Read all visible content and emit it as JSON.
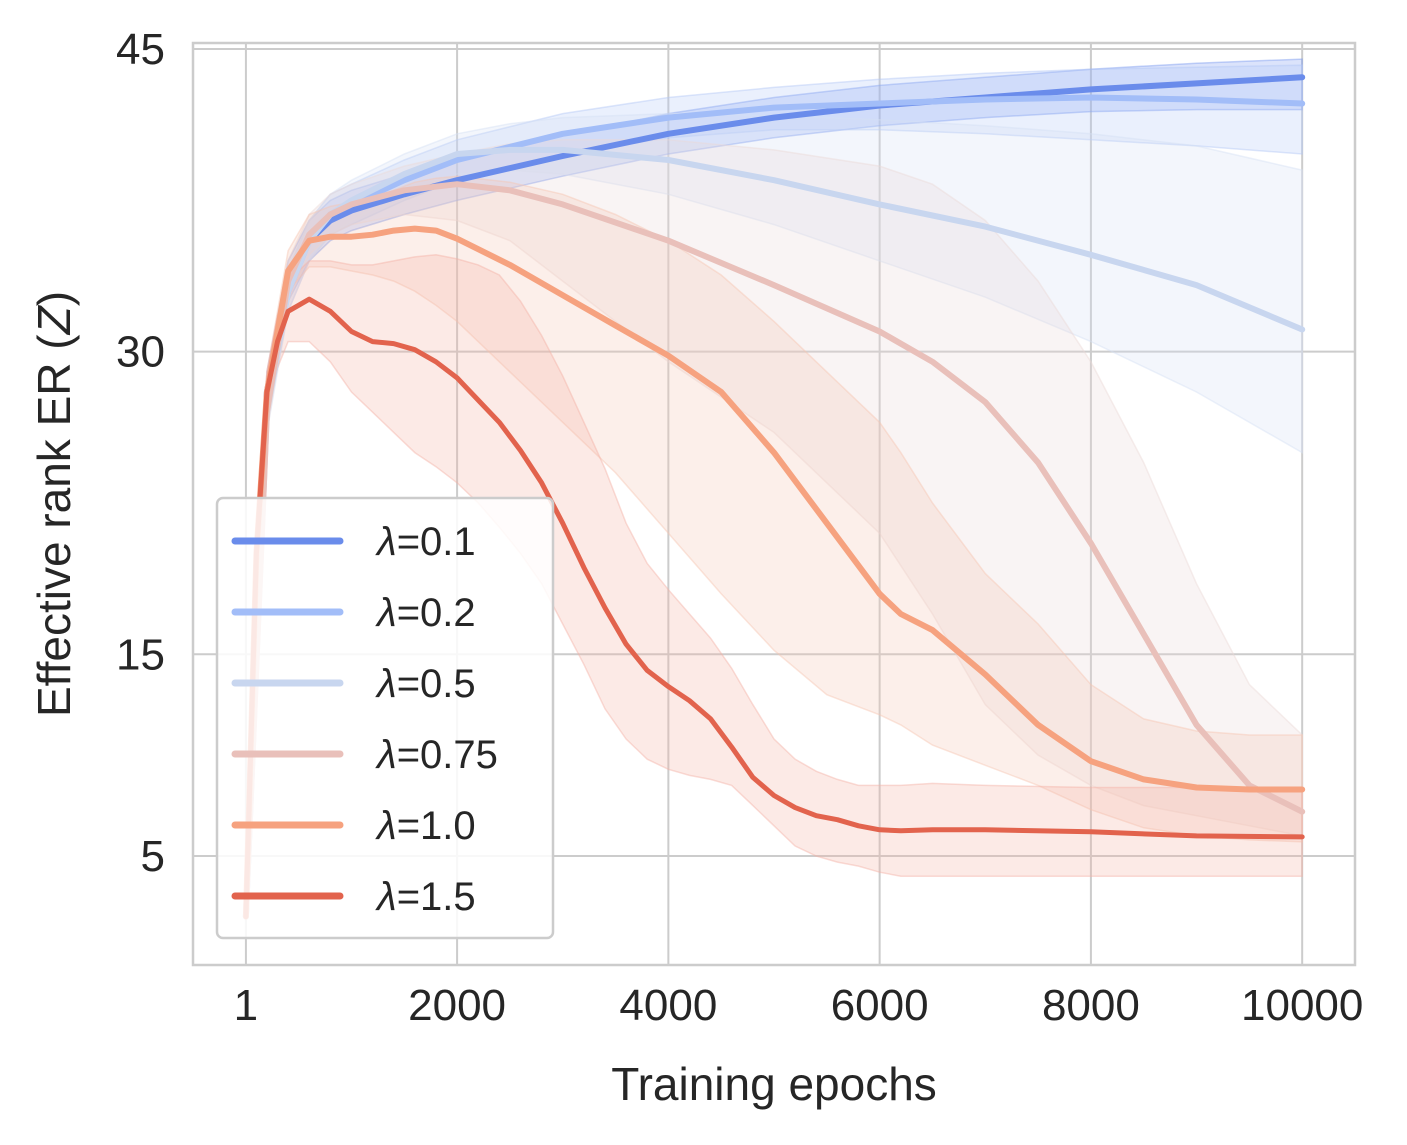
{
  "chart_data": {
    "type": "line",
    "title": "",
    "xlabel": "Training epochs",
    "ylabel_prefix": "Effective rank  ER (",
    "ylabel_var": "Z",
    "ylabel_suffix": ")",
    "xlim": [
      -500,
      10500
    ],
    "ylim": [
      -0.4,
      45.3
    ],
    "x_ticks": [
      1,
      2000,
      4000,
      6000,
      8000,
      10000
    ],
    "x_tick_labels": [
      "1",
      "2000",
      "4000",
      "6000",
      "8000",
      "10000"
    ],
    "y_ticks": [
      5,
      15,
      30,
      45
    ],
    "y_tick_labels": [
      "5",
      "15",
      "30",
      "45"
    ],
    "grid": true,
    "legend_position": "lower-left",
    "legend_symbol": "λ",
    "series": [
      {
        "name": "λ=0.1",
        "legend_label": "=0.1",
        "color": "#6a8ceb",
        "band_color": "#7d9bef",
        "line_width": 6,
        "x": [
          1,
          200,
          400,
          600,
          800,
          1000,
          1500,
          2000,
          3000,
          4000,
          5000,
          6000,
          7000,
          8000,
          9000,
          10000
        ],
        "y": [
          2,
          28,
          33.5,
          35.5,
          36.5,
          37,
          37.8,
          38.5,
          39.7,
          40.8,
          41.6,
          42.2,
          42.6,
          43.0,
          43.3,
          43.6
        ],
        "lower": [
          2,
          27,
          32.5,
          34.5,
          35.5,
          36,
          36.8,
          37.5,
          38.7,
          39.8,
          40.6,
          41.2,
          41.6,
          41.9,
          42.0,
          42.0
        ],
        "upper": [
          2,
          29,
          34.5,
          36.5,
          37.5,
          38,
          38.8,
          39.5,
          40.7,
          41.8,
          42.6,
          43.2,
          43.6,
          44.0,
          44.3,
          44.5
        ]
      },
      {
        "name": "λ=0.2",
        "legend_label": "=0.2",
        "color": "#a2bdf8",
        "band_color": "#b3c8f7",
        "line_width": 6,
        "x": [
          1,
          200,
          400,
          600,
          800,
          1000,
          1500,
          2000,
          3000,
          4000,
          5000,
          6000,
          7000,
          8000,
          9000,
          10000
        ],
        "y": [
          2,
          27.5,
          33,
          35.5,
          36.8,
          37.3,
          38.5,
          39.5,
          40.8,
          41.6,
          42.1,
          42.3,
          42.5,
          42.6,
          42.5,
          42.3
        ],
        "lower": [
          2,
          26.5,
          32,
          34.5,
          35.8,
          36.3,
          37.5,
          38.5,
          39.8,
          40.6,
          41.0,
          41.0,
          40.8,
          40.5,
          40.2,
          39.8
        ],
        "upper": [
          2,
          28.5,
          34,
          36.5,
          37.8,
          38.3,
          39.5,
          40.5,
          41.8,
          42.6,
          43.1,
          43.5,
          43.8,
          44.0,
          44.1,
          44.2
        ]
      },
      {
        "name": "λ=0.5",
        "legend_label": "=0.5",
        "color": "#c8d6ef",
        "band_color": "#d5e0f5",
        "line_width": 6,
        "x": [
          1,
          200,
          400,
          600,
          800,
          1000,
          1500,
          2000,
          2500,
          3000,
          4000,
          5000,
          6000,
          7000,
          8000,
          9000,
          10000
        ],
        "y": [
          2,
          27,
          33,
          35.5,
          36.8,
          37.5,
          38.8,
          39.8,
          40.0,
          40.0,
          39.5,
          38.5,
          37.3,
          36.2,
          34.8,
          33.3,
          31.1
        ],
        "lower": [
          2,
          26,
          32,
          34.5,
          35.8,
          36.5,
          37.8,
          38.8,
          39.0,
          38.8,
          37.8,
          36.3,
          34.5,
          32.7,
          30.5,
          28.0,
          25
        ],
        "upper": [
          2,
          28,
          34,
          36.5,
          37.8,
          38.5,
          39.8,
          40.8,
          41.3,
          41.6,
          41.8,
          41.7,
          41.5,
          41.2,
          40.8,
          40.2,
          39
        ]
      },
      {
        "name": "λ=0.75",
        "legend_label": "=0.75",
        "color": "#e9c0ba",
        "band_color": "#ead9d7",
        "line_width": 6,
        "x": [
          1,
          200,
          400,
          600,
          800,
          1000,
          1500,
          2000,
          2500,
          3000,
          4000,
          5000,
          6000,
          6500,
          7000,
          7500,
          8000,
          8500,
          9000,
          9500,
          10000
        ],
        "y": [
          2,
          27,
          33.5,
          35.8,
          36.8,
          37.3,
          38,
          38.3,
          38,
          37.3,
          35.5,
          33.3,
          31,
          29.5,
          27.5,
          24.5,
          20.5,
          16,
          11.5,
          8.5,
          7.2
        ],
        "lower": [
          2,
          26,
          32.5,
          34.8,
          35.8,
          36.3,
          36.8,
          36.5,
          35.5,
          33.5,
          29.5,
          26,
          21,
          17,
          12.5,
          10,
          8.5,
          7.5,
          7,
          6.5,
          6
        ],
        "upper": [
          2,
          28,
          34.5,
          36.8,
          37.8,
          38.3,
          39.2,
          39.8,
          40.3,
          40.5,
          40.5,
          40.0,
          39.2,
          38.3,
          36.5,
          33.5,
          29.5,
          24.5,
          18.5,
          13.5,
          11
        ]
      },
      {
        "name": "λ=1.0",
        "legend_label": "=1.0",
        "color": "#f6a27f",
        "band_color": "#f6c6b2",
        "line_width": 6,
        "x": [
          1,
          100,
          200,
          400,
          600,
          800,
          1000,
          1200,
          1400,
          1600,
          1800,
          2000,
          2500,
          3000,
          3500,
          4000,
          4500,
          5000,
          5500,
          6000,
          6200,
          6500,
          7000,
          7500,
          8000,
          8500,
          9000,
          9500,
          10000
        ],
        "y": [
          2,
          20,
          28,
          34,
          35.5,
          35.7,
          35.7,
          35.8,
          36,
          36.1,
          36,
          35.6,
          34.3,
          32.8,
          31.3,
          29.8,
          28,
          25,
          21.5,
          18,
          17,
          16.2,
          14,
          11.5,
          9.7,
          8.8,
          8.4,
          8.3,
          8.3
        ],
        "lower": [
          2,
          19,
          27,
          33,
          34.2,
          34.2,
          34.0,
          33.8,
          33.5,
          33.0,
          32.3,
          31.5,
          29,
          26.5,
          24,
          21,
          18,
          15.2,
          13,
          12,
          11.5,
          10.5,
          9.5,
          8.5,
          7.3,
          6.4,
          6.0,
          5.8,
          5.7
        ],
        "upper": [
          2,
          21,
          29,
          35,
          36.8,
          37.2,
          37.4,
          37.6,
          38,
          38.4,
          38.6,
          38.7,
          38.4,
          37.8,
          36.8,
          35.5,
          33.8,
          31.5,
          29,
          26.5,
          25,
          22.5,
          19,
          16.5,
          13.5,
          11.8,
          11.2,
          11.0,
          11.0
        ]
      },
      {
        "name": "λ=1.5",
        "legend_label": "=1.5",
        "color": "#e2634d",
        "band_color": "#f3b2a6",
        "line_width": 5,
        "x": [
          1,
          100,
          200,
          300,
          400,
          500,
          600,
          800,
          1000,
          1200,
          1400,
          1600,
          1800,
          2000,
          2200,
          2400,
          2600,
          2800,
          3000,
          3200,
          3400,
          3600,
          3800,
          4000,
          4200,
          4400,
          4600,
          4800,
          5000,
          5200,
          5400,
          5600,
          5800,
          6000,
          6200,
          6500,
          7000,
          8000,
          9000,
          10000
        ],
        "y": [
          2,
          20,
          28,
          30.5,
          32,
          32.3,
          32.6,
          32,
          31,
          30.5,
          30.4,
          30.1,
          29.5,
          28.7,
          27.6,
          26.5,
          25.1,
          23.5,
          21.5,
          19.3,
          17.3,
          15.5,
          14.2,
          13.4,
          12.7,
          11.8,
          10.4,
          8.9,
          8.0,
          7.4,
          7.0,
          6.8,
          6.5,
          6.3,
          6.25,
          6.3,
          6.3,
          6.2,
          6.0,
          5.95
        ],
        "lower": [
          2,
          19,
          27,
          29.2,
          30.5,
          30.5,
          30.5,
          29.5,
          28,
          27,
          26,
          25,
          24.3,
          23.5,
          22.5,
          21.3,
          20,
          18.5,
          16.5,
          14.5,
          12.3,
          10.8,
          9.8,
          9.3,
          9.0,
          8.8,
          8.5,
          7.5,
          6.5,
          5.5,
          5.0,
          4.7,
          4.5,
          4.2,
          4.0,
          4.0,
          4.0,
          4.0,
          4.0,
          4.0
        ],
        "upper": [
          2,
          21,
          29,
          31.8,
          33.5,
          34.0,
          34.5,
          34.5,
          34.3,
          34.3,
          34.5,
          34.7,
          34.8,
          34.6,
          34.3,
          33.8,
          32.5,
          30.8,
          28.8,
          26.5,
          24.2,
          21.5,
          19.5,
          18.2,
          17.0,
          15.8,
          14.3,
          12.5,
          10.8,
          9.8,
          9.2,
          8.8,
          8.5,
          8.5,
          8.5,
          8.6,
          8.5,
          8.4,
          8.4,
          8.3
        ]
      }
    ]
  }
}
